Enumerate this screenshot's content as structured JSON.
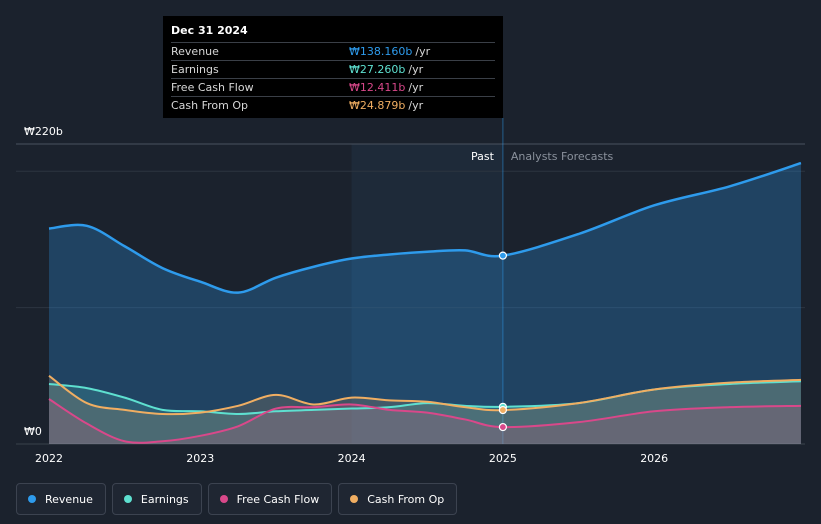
{
  "tooltip": {
    "date": "Dec 31 2024",
    "rows": [
      {
        "label": "Revenue",
        "value": "₩138.160b",
        "unit": "/yr",
        "color": "#2e9bec"
      },
      {
        "label": "Earnings",
        "value": "₩27.260b",
        "unit": "/yr",
        "color": "#5ee0d0"
      },
      {
        "label": "Free Cash Flow",
        "value": "₩12.411b",
        "unit": "/yr",
        "color": "#d9488a"
      },
      {
        "label": "Cash From Op",
        "value": "₩24.879b",
        "unit": "/yr",
        "color": "#f0ae62"
      }
    ]
  },
  "legend": [
    {
      "label": "Revenue",
      "color": "#2e9bec"
    },
    {
      "label": "Earnings",
      "color": "#5ee0d0"
    },
    {
      "label": "Free Cash Flow",
      "color": "#d9488a"
    },
    {
      "label": "Cash From Op",
      "color": "#f0ae62"
    }
  ],
  "chart_data": {
    "type": "line",
    "title": "",
    "y_top_label": "₩220b",
    "y_bottom_label": "₩0",
    "ylim": [
      0,
      220
    ],
    "xlim": [
      2021.9,
      2026.97
    ],
    "x_ticks": [
      2022,
      2023,
      2024,
      2025,
      2026
    ],
    "x_tick_labels": [
      "2022",
      "2023",
      "2024",
      "2025",
      "2026"
    ],
    "past_label": "Past",
    "forecast_label": "Analysts Forecasts",
    "divider_x": 2025.0,
    "shade_start_x": 2024.0,
    "series": [
      {
        "name": "Revenue",
        "color": "#2e9bec",
        "x": [
          2022.0,
          2022.25,
          2022.5,
          2022.75,
          2023.0,
          2023.25,
          2023.5,
          2023.75,
          2024.0,
          2024.25,
          2024.5,
          2024.75,
          2025.0,
          2025.5,
          2026.0,
          2026.5,
          2026.97
        ],
        "values": [
          158,
          160,
          145,
          129,
          119,
          111,
          122,
          130,
          136,
          139,
          141,
          142,
          138.16,
          154,
          175,
          189,
          206
        ]
      },
      {
        "name": "Earnings",
        "color": "#5ee0d0",
        "x": [
          2022.0,
          2022.25,
          2022.5,
          2022.75,
          2023.0,
          2023.25,
          2023.5,
          2023.75,
          2024.0,
          2024.25,
          2024.5,
          2024.75,
          2025.0,
          2025.5,
          2026.0,
          2026.5,
          2026.97
        ],
        "values": [
          44,
          41,
          34,
          25,
          24,
          22,
          24,
          25,
          26,
          27,
          30,
          28,
          27.26,
          30,
          40,
          44,
          46
        ]
      },
      {
        "name": "Free Cash Flow",
        "color": "#d9488a",
        "x": [
          2022.0,
          2022.25,
          2022.5,
          2022.75,
          2023.0,
          2023.25,
          2023.5,
          2023.75,
          2024.0,
          2024.25,
          2024.5,
          2024.75,
          2025.0,
          2025.5,
          2026.0,
          2026.5,
          2026.97
        ],
        "values": [
          33,
          15,
          2,
          2,
          6,
          13,
          26,
          27,
          29,
          25,
          23,
          18,
          12.411,
          16,
          24,
          27,
          28
        ]
      },
      {
        "name": "Cash From Op",
        "color": "#f0ae62",
        "x": [
          2022.0,
          2022.25,
          2022.5,
          2022.75,
          2023.0,
          2023.25,
          2023.5,
          2023.75,
          2024.0,
          2024.25,
          2024.5,
          2024.75,
          2025.0,
          2025.5,
          2026.0,
          2026.5,
          2026.97
        ],
        "values": [
          50,
          30,
          25,
          22,
          23,
          28,
          36,
          29,
          34,
          32,
          31,
          27,
          24.879,
          30,
          40,
          45,
          47
        ]
      }
    ]
  }
}
